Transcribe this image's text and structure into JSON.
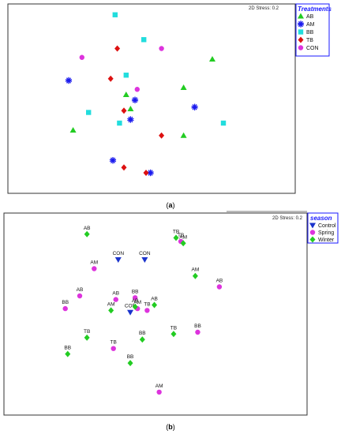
{
  "colors": {
    "triangle": "#22cc22",
    "star": "#1a1aee",
    "square": "#22dddd",
    "diamond_red": "#dd1111",
    "circle": "#dd33dd",
    "down_triangle": "#1a33cc",
    "diamond_green": "#22cc22",
    "frame": "#333333",
    "legend_title": "#1a1aff"
  },
  "chart_data": [
    {
      "type": "scatter",
      "panel_label": "(a)",
      "stress_text": "2D Stress: 0.2",
      "legend_title": "Treatments",
      "legend_position": "top-right",
      "grid": false,
      "xlim": [
        0,
        100
      ],
      "ylim": [
        0,
        100
      ],
      "series": [
        {
          "name": "AB",
          "marker": "triangle",
          "color": "#22cc22",
          "points": [
            [
              80,
              72
            ],
            [
              67,
              56
            ],
            [
              41,
              52
            ],
            [
              43,
              44
            ],
            [
              17,
              32
            ],
            [
              67,
              29
            ]
          ]
        },
        {
          "name": "AM",
          "marker": "star",
          "color": "#1a1aee",
          "points": [
            [
              15,
              60
            ],
            [
              45,
              49
            ],
            [
              72,
              45
            ],
            [
              43,
              38
            ],
            [
              35,
              15
            ],
            [
              52,
              8
            ]
          ]
        },
        {
          "name": "BB",
          "marker": "square",
          "color": "#22dddd",
          "points": [
            [
              36,
              97
            ],
            [
              49,
              83
            ],
            [
              41,
              63
            ],
            [
              24,
              42
            ],
            [
              38,
              36
            ],
            [
              85,
              36
            ]
          ]
        },
        {
          "name": "TB",
          "marker": "diamond",
          "color": "#dd1111",
          "points": [
            [
              37,
              78
            ],
            [
              34,
              61
            ],
            [
              40,
              43
            ],
            [
              57,
              29
            ],
            [
              40,
              11
            ],
            [
              50,
              8
            ]
          ]
        },
        {
          "name": "CON",
          "marker": "circle",
          "color": "#dd33dd",
          "points": [
            [
              21,
              73
            ],
            [
              57,
              78
            ],
            [
              46,
              55
            ]
          ]
        }
      ]
    },
    {
      "type": "scatter",
      "panel_label": "(b)",
      "stress_text": "2D Stress: 0.2",
      "legend_title": "season",
      "legend_position": "top-right",
      "grid": false,
      "xlim": [
        0,
        100
      ],
      "ylim": [
        0,
        100
      ],
      "series": [
        {
          "name": "Control",
          "marker": "down_triangle",
          "color": "#1a33cc",
          "points": [
            {
              "x": 36,
              "y": 80,
              "label": "CON"
            },
            {
              "x": 47,
              "y": 80,
              "label": "CON"
            },
            {
              "x": 41,
              "y": 51,
              "label": "CON"
            }
          ]
        },
        {
          "name": "Spring",
          "marker": "circle",
          "color": "#dd33dd",
          "points": [
            {
              "x": 62,
              "y": 90,
              "label": "TB"
            },
            {
              "x": 26,
              "y": 75,
              "label": "AM"
            },
            {
              "x": 20,
              "y": 60,
              "label": "AB"
            },
            {
              "x": 35,
              "y": 58,
              "label": "AB"
            },
            {
              "x": 43,
              "y": 59,
              "label": "BB"
            },
            {
              "x": 14,
              "y": 53,
              "label": "BB"
            },
            {
              "x": 44,
              "y": 53,
              "label": "AM"
            },
            {
              "x": 48,
              "y": 52,
              "label": "TB"
            },
            {
              "x": 78,
              "y": 65,
              "label": "AB"
            },
            {
              "x": 69,
              "y": 40,
              "label": "BB"
            },
            {
              "x": 34,
              "y": 31,
              "label": "TB"
            },
            {
              "x": 53,
              "y": 7,
              "label": "AM"
            }
          ]
        },
        {
          "name": "Winter",
          "marker": "diamond",
          "color": "#22cc22",
          "points": [
            {
              "x": 23,
              "y": 94,
              "label": "AB"
            },
            {
              "x": 60,
              "y": 92,
              "label": "TB"
            },
            {
              "x": 63,
              "y": 89,
              "label": "AM"
            },
            {
              "x": 68,
              "y": 71,
              "label": "AM"
            },
            {
              "x": 33,
              "y": 52,
              "label": "AM"
            },
            {
              "x": 43,
              "y": 54,
              "label": "AB"
            },
            {
              "x": 51,
              "y": 55,
              "label": "AB"
            },
            {
              "x": 46,
              "y": 36,
              "label": "BB"
            },
            {
              "x": 59,
              "y": 39,
              "label": "TB"
            },
            {
              "x": 23,
              "y": 37,
              "label": "TB"
            },
            {
              "x": 15,
              "y": 28,
              "label": "BB"
            },
            {
              "x": 41,
              "y": 23,
              "label": "BB"
            }
          ]
        }
      ]
    }
  ]
}
